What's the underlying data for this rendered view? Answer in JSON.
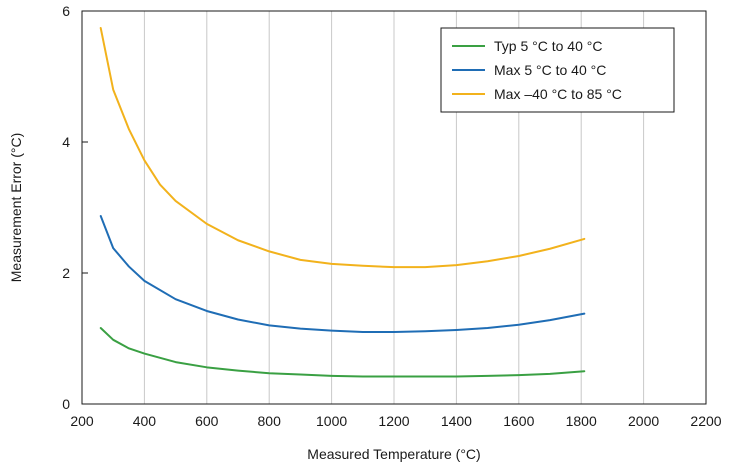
{
  "chart_data": {
    "type": "line",
    "title": "",
    "xlabel": "Measured Temperature (°C)",
    "ylabel": "Measurement Error (°C)",
    "xlim": [
      200,
      2200
    ],
    "ylim": [
      0,
      6
    ],
    "xticks": [
      200,
      400,
      600,
      800,
      1000,
      1200,
      1400,
      1600,
      1800,
      2000,
      2200
    ],
    "yticks": [
      0,
      2,
      4,
      6
    ],
    "grid": "vertical",
    "legend_position": "top-right",
    "series": [
      {
        "name": "Typ 5 °C to 40 °C",
        "color": "#3aa043",
        "points": [
          [
            260,
            1.16
          ],
          [
            300,
            0.98
          ],
          [
            350,
            0.85
          ],
          [
            400,
            0.77
          ],
          [
            500,
            0.64
          ],
          [
            600,
            0.56
          ],
          [
            700,
            0.51
          ],
          [
            800,
            0.47
          ],
          [
            900,
            0.45
          ],
          [
            1000,
            0.43
          ],
          [
            1100,
            0.42
          ],
          [
            1200,
            0.42
          ],
          [
            1300,
            0.42
          ],
          [
            1400,
            0.42
          ],
          [
            1500,
            0.43
          ],
          [
            1600,
            0.44
          ],
          [
            1700,
            0.46
          ],
          [
            1810,
            0.5
          ]
        ]
      },
      {
        "name": "Max 5 °C to 40 °C",
        "color": "#1f6db5",
        "points": [
          [
            260,
            2.87
          ],
          [
            300,
            2.38
          ],
          [
            350,
            2.1
          ],
          [
            400,
            1.88
          ],
          [
            500,
            1.6
          ],
          [
            600,
            1.42
          ],
          [
            700,
            1.29
          ],
          [
            800,
            1.2
          ],
          [
            900,
            1.15
          ],
          [
            1000,
            1.12
          ],
          [
            1100,
            1.1
          ],
          [
            1200,
            1.1
          ],
          [
            1300,
            1.11
          ],
          [
            1400,
            1.13
          ],
          [
            1500,
            1.16
          ],
          [
            1600,
            1.21
          ],
          [
            1700,
            1.28
          ],
          [
            1810,
            1.38
          ]
        ]
      },
      {
        "name": "Max –40 °C to 85 °C",
        "color": "#f2b21c",
        "points": [
          [
            260,
            5.74
          ],
          [
            300,
            4.8
          ],
          [
            350,
            4.2
          ],
          [
            400,
            3.72
          ],
          [
            450,
            3.35
          ],
          [
            500,
            3.1
          ],
          [
            600,
            2.75
          ],
          [
            700,
            2.5
          ],
          [
            800,
            2.33
          ],
          [
            900,
            2.2
          ],
          [
            1000,
            2.14
          ],
          [
            1100,
            2.11
          ],
          [
            1200,
            2.09
          ],
          [
            1300,
            2.09
          ],
          [
            1400,
            2.12
          ],
          [
            1500,
            2.18
          ],
          [
            1600,
            2.26
          ],
          [
            1700,
            2.37
          ],
          [
            1810,
            2.52
          ]
        ]
      }
    ]
  }
}
